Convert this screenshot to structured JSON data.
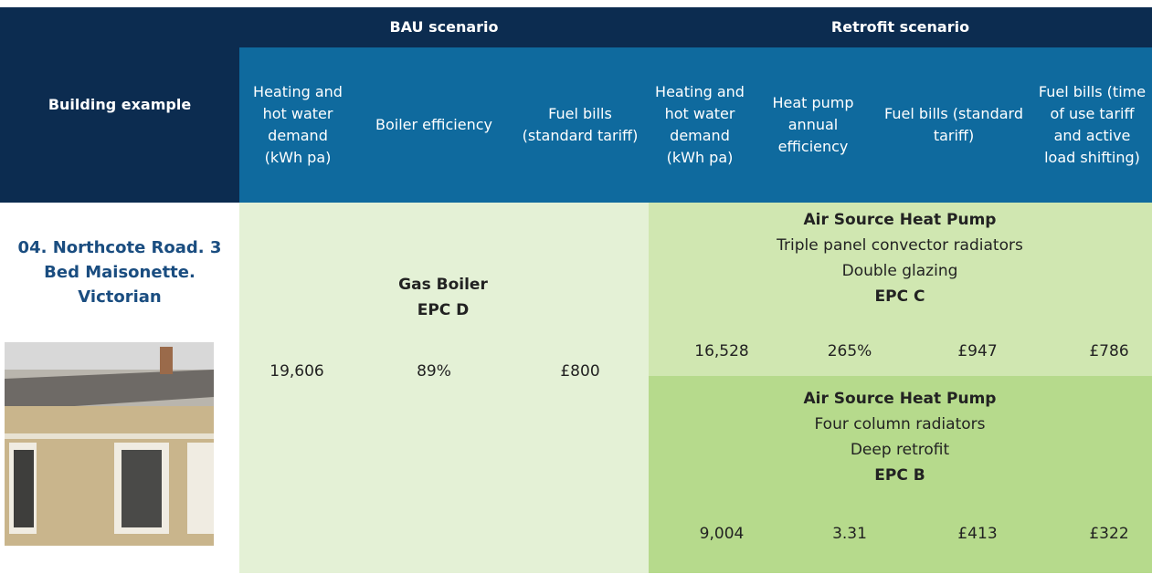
{
  "header": {
    "building_column": "Building example",
    "groups": [
      "BAU scenario",
      "Retrofit scenario"
    ],
    "bau_columns": [
      "Heating and hot water demand (kWh pa)",
      "Boiler efficiency",
      "Fuel bills (standard tariff)"
    ],
    "retrofit_columns": [
      "Heating and hot water demand (kWh pa)",
      "Heat pump annual efficiency",
      "Fuel bills (standard tariff)",
      "Fuel bills (time of use tariff and active load shifting)"
    ]
  },
  "building": {
    "name": "04. Northcote Road. 3 Bed Maisonette. Victorian"
  },
  "bau": {
    "system": "Gas Boiler",
    "epc": "EPC D",
    "values": [
      "19,606",
      "89%",
      "£800"
    ]
  },
  "retrofit_options": [
    {
      "system": "Air Source Heat Pump",
      "details": [
        "Triple panel convector radiators",
        "Double glazing"
      ],
      "epc": "EPC C",
      "values": [
        "16,528",
        "265%",
        "£947",
        "£786"
      ]
    },
    {
      "system": "Air Source Heat Pump",
      "details": [
        "Four column radiators",
        "Deep retrofit"
      ],
      "epc": "EPC B",
      "values": [
        "9,004",
        "3.31",
        "£413",
        "£322"
      ]
    }
  ]
}
